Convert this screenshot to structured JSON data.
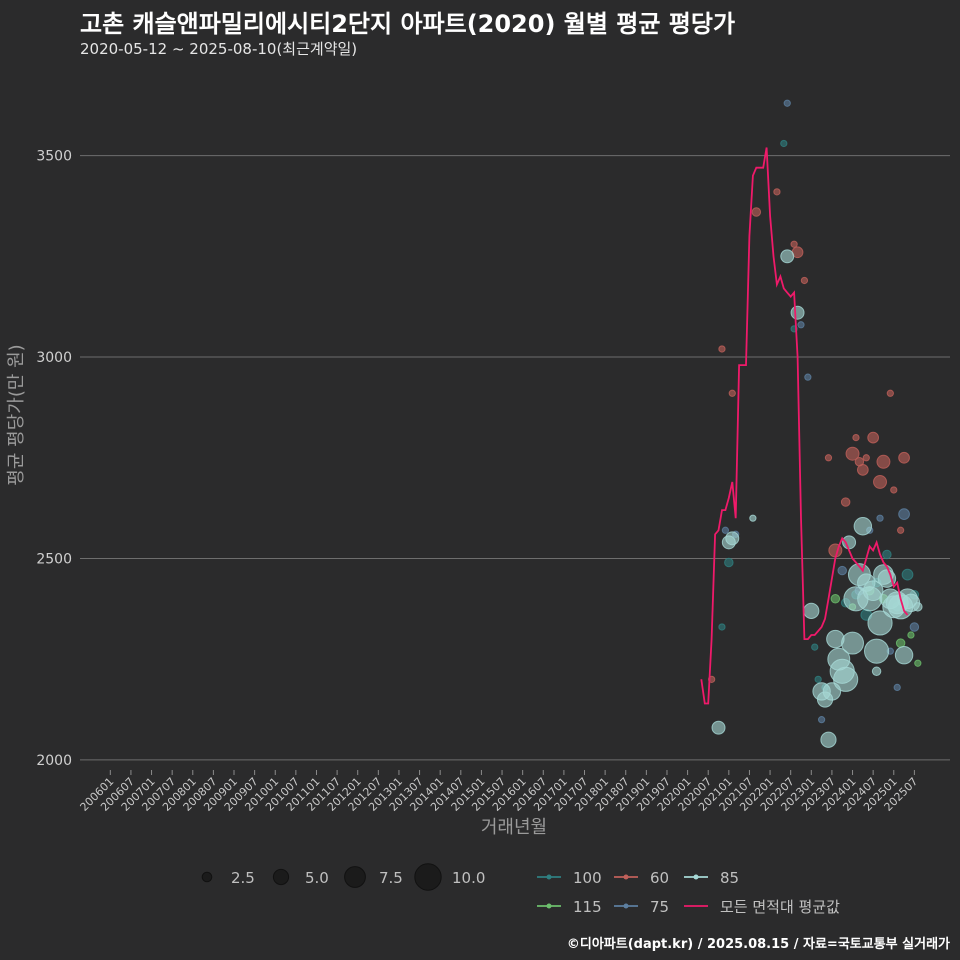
{
  "title": "고촌 캐슬앤파밀리에시티2단지 아파트(2020) 월별 평균 평당가",
  "subtitle": "2020-05-12 ~ 2025-08-10(최근계약일)",
  "caption": "©디아파트(dapt.kr) / 2025.08.15 / 자료=국토교통부 실거래가",
  "colors": {
    "background": "#2b2b2c",
    "grid": "#6e6e6e",
    "area_100": "#2f7f80",
    "area_115": "#6dbf6d",
    "area_60": "#c0605a",
    "area_75": "#5d7fa0",
    "area_85": "#a6d8d6",
    "avg_line": "#ef1a6a"
  },
  "chart_data": {
    "type": "scatter",
    "title": "고촌 캐슬앤파밀리에시티2단지 아파트(2020) 월별 평균 평당가",
    "xlabel": "거래년월",
    "ylabel": "평균 평당가(만 원)",
    "ylim": [
      1975,
      3700
    ],
    "yticks": [
      2000,
      2500,
      3000,
      3500
    ],
    "xrange": [
      "2006-01",
      "2025-08"
    ],
    "xticks": [
      "200601",
      "200607",
      "200701",
      "200707",
      "200801",
      "200807",
      "200901",
      "200907",
      "201001",
      "201007",
      "201101",
      "201107",
      "201201",
      "201207",
      "201301",
      "201307",
      "201401",
      "201407",
      "201501",
      "201507",
      "201601",
      "201607",
      "201701",
      "201707",
      "201801",
      "201807",
      "201901",
      "201907",
      "202001",
      "202007",
      "202101",
      "202107",
      "202201",
      "202207",
      "202301",
      "202307",
      "202401",
      "202407",
      "202501",
      "202507"
    ],
    "size_legend": {
      "title": "",
      "values": [
        2.5,
        5.0,
        7.5,
        10.0
      ]
    },
    "series": [
      {
        "name": "100",
        "color": "#2f7f80",
        "points": [
          [
            "2020-11",
            2330,
            1
          ],
          [
            "2021-01",
            2490,
            2
          ],
          [
            "2023-02",
            2280,
            1
          ],
          [
            "2023-05",
            2180,
            1
          ],
          [
            "2023-11",
            2390,
            2
          ],
          [
            "2024-02",
            2410,
            2
          ],
          [
            "2024-05",
            2360,
            3
          ],
          [
            "2024-08",
            2440,
            2
          ],
          [
            "2024-11",
            2510,
            2
          ],
          [
            "2025-02",
            2380,
            2
          ],
          [
            "2025-05",
            2460,
            3
          ],
          [
            "2025-07",
            2410,
            2
          ],
          [
            "2022-05",
            3530,
            1
          ],
          [
            "2022-08",
            3070,
            1
          ],
          [
            "2023-03",
            2200,
            1
          ]
        ]
      },
      {
        "name": "115",
        "color": "#6dbf6d",
        "points": [
          [
            "2023-08",
            2400,
            2
          ],
          [
            "2024-01",
            2380,
            1
          ],
          [
            "2024-06",
            2420,
            2
          ],
          [
            "2024-10",
            2400,
            2
          ],
          [
            "2025-03",
            2290,
            2
          ],
          [
            "2025-06",
            2310,
            1
          ],
          [
            "2025-08",
            2240,
            1
          ]
        ]
      },
      {
        "name": "60",
        "color": "#c0605a",
        "points": [
          [
            "2020-08",
            2200,
            1
          ],
          [
            "2020-11",
            3020,
            1
          ],
          [
            "2021-02",
            2910,
            1
          ],
          [
            "2021-09",
            3360,
            2
          ],
          [
            "2022-03",
            3410,
            1
          ],
          [
            "2022-08",
            3280,
            1
          ],
          [
            "2022-09",
            3260,
            3
          ],
          [
            "2022-11",
            3190,
            1
          ],
          [
            "2023-06",
            2750,
            1
          ],
          [
            "2023-08",
            2520,
            4
          ],
          [
            "2023-11",
            2640,
            2
          ],
          [
            "2024-01",
            2760,
            4
          ],
          [
            "2024-02",
            2800,
            1
          ],
          [
            "2024-03",
            2740,
            2
          ],
          [
            "2024-04",
            2720,
            3
          ],
          [
            "2024-05",
            2750,
            1
          ],
          [
            "2024-07",
            2800,
            3
          ],
          [
            "2024-09",
            2690,
            4
          ],
          [
            "2024-10",
            2740,
            4
          ],
          [
            "2024-12",
            2910,
            1
          ],
          [
            "2025-01",
            2670,
            1
          ],
          [
            "2025-04",
            2750,
            3
          ],
          [
            "2025-03",
            2570,
            1
          ]
        ]
      },
      {
        "name": "75",
        "color": "#5d7fa0",
        "points": [
          [
            "2020-12",
            2570,
            1
          ],
          [
            "2021-03",
            2560,
            1
          ],
          [
            "2022-06",
            3630,
            1
          ],
          [
            "2022-10",
            3080,
            1
          ],
          [
            "2022-12",
            2950,
            1
          ],
          [
            "2023-04",
            2100,
            1
          ],
          [
            "2023-10",
            2470,
            2
          ],
          [
            "2024-03",
            2420,
            2
          ],
          [
            "2024-06",
            2570,
            1
          ],
          [
            "2024-09",
            2600,
            1
          ],
          [
            "2024-12",
            2270,
            1
          ],
          [
            "2025-02",
            2180,
            1
          ],
          [
            "2025-04",
            2610,
            3
          ],
          [
            "2025-07",
            2330,
            2
          ]
        ]
      },
      {
        "name": "85",
        "color": "#a6d8d6",
        "points": [
          [
            "2020-10",
            2080,
            4
          ],
          [
            "2021-01",
            2540,
            4
          ],
          [
            "2021-02",
            2550,
            4
          ],
          [
            "2021-08",
            2600,
            1
          ],
          [
            "2022-06",
            3250,
            4
          ],
          [
            "2022-09",
            3110,
            4
          ],
          [
            "2023-01",
            2370,
            5
          ],
          [
            "2023-04",
            2170,
            6
          ],
          [
            "2023-05",
            2150,
            5
          ],
          [
            "2023-06",
            2050,
            5
          ],
          [
            "2023-07",
            2170,
            6
          ],
          [
            "2023-08",
            2300,
            6
          ],
          [
            "2023-09",
            2250,
            8
          ],
          [
            "2023-10",
            2220,
            9
          ],
          [
            "2023-11",
            2200,
            9
          ],
          [
            "2024-01",
            2290,
            8
          ],
          [
            "2024-02",
            2400,
            9
          ],
          [
            "2024-03",
            2460,
            8
          ],
          [
            "2024-04",
            2580,
            6
          ],
          [
            "2024-05",
            2440,
            6
          ],
          [
            "2024-06",
            2400,
            9
          ],
          [
            "2024-07",
            2420,
            7
          ],
          [
            "2024-08",
            2270,
            9
          ],
          [
            "2024-09",
            2340,
            9
          ],
          [
            "2024-10",
            2460,
            7
          ],
          [
            "2024-11",
            2450,
            6
          ],
          [
            "2024-12",
            2400,
            7
          ],
          [
            "2025-01",
            2380,
            8
          ],
          [
            "2025-02",
            2390,
            8
          ],
          [
            "2025-03",
            2380,
            9
          ],
          [
            "2025-04",
            2260,
            6
          ],
          [
            "2025-05",
            2400,
            7
          ],
          [
            "2025-06",
            2390,
            6
          ],
          [
            "2024-08",
            2220,
            2
          ],
          [
            "2025-08",
            2380,
            2
          ],
          [
            "2023-12",
            2540,
            4
          ]
        ]
      }
    ],
    "avg_line": {
      "name": "모든 면적대 평균값",
      "color": "#ef1a6a",
      "points": [
        [
          "2020-05",
          2200
        ],
        [
          "2020-06",
          2140
        ],
        [
          "2020-07",
          2140
        ],
        [
          "2020-08",
          2300
        ],
        [
          "2020-09",
          2560
        ],
        [
          "2020-10",
          2570
        ],
        [
          "2020-11",
          2620
        ],
        [
          "2020-12",
          2620
        ],
        [
          "2021-01",
          2650
        ],
        [
          "2021-02",
          2690
        ],
        [
          "2021-03",
          2600
        ],
        [
          "2021-04",
          2980
        ],
        [
          "2021-05",
          2980
        ],
        [
          "2021-06",
          2980
        ],
        [
          "2021-07",
          3300
        ],
        [
          "2021-08",
          3450
        ],
        [
          "2021-09",
          3470
        ],
        [
          "2021-10",
          3470
        ],
        [
          "2021-11",
          3470
        ],
        [
          "2021-12",
          3520
        ],
        [
          "2022-01",
          3350
        ],
        [
          "2022-02",
          3250
        ],
        [
          "2022-03",
          3180
        ],
        [
          "2022-04",
          3200
        ],
        [
          "2022-05",
          3170
        ],
        [
          "2022-06",
          3160
        ],
        [
          "2022-07",
          3150
        ],
        [
          "2022-08",
          3160
        ],
        [
          "2022-09",
          3000
        ],
        [
          "2022-10",
          2600
        ],
        [
          "2022-11",
          2300
        ],
        [
          "2022-12",
          2300
        ],
        [
          "2023-01",
          2310
        ],
        [
          "2023-02",
          2310
        ],
        [
          "2023-03",
          2320
        ],
        [
          "2023-04",
          2330
        ],
        [
          "2023-05",
          2350
        ],
        [
          "2023-06",
          2400
        ],
        [
          "2023-07",
          2450
        ],
        [
          "2023-08",
          2500
        ],
        [
          "2023-09",
          2530
        ],
        [
          "2023-10",
          2550
        ],
        [
          "2023-11",
          2540
        ],
        [
          "2023-12",
          2520
        ],
        [
          "2024-01",
          2500
        ],
        [
          "2024-02",
          2490
        ],
        [
          "2024-03",
          2480
        ],
        [
          "2024-04",
          2470
        ],
        [
          "2024-05",
          2500
        ],
        [
          "2024-06",
          2530
        ],
        [
          "2024-07",
          2520
        ],
        [
          "2024-08",
          2540
        ],
        [
          "2024-09",
          2510
        ],
        [
          "2024-10",
          2490
        ],
        [
          "2024-11",
          2480
        ],
        [
          "2024-12",
          2460
        ],
        [
          "2025-01",
          2430
        ],
        [
          "2025-02",
          2440
        ],
        [
          "2025-03",
          2400
        ],
        [
          "2025-04",
          2370
        ],
        [
          "2025-05",
          2360
        ]
      ]
    },
    "legend": [
      "100",
      "60",
      "85",
      "115",
      "75",
      "모든 면적대 평균값"
    ]
  }
}
